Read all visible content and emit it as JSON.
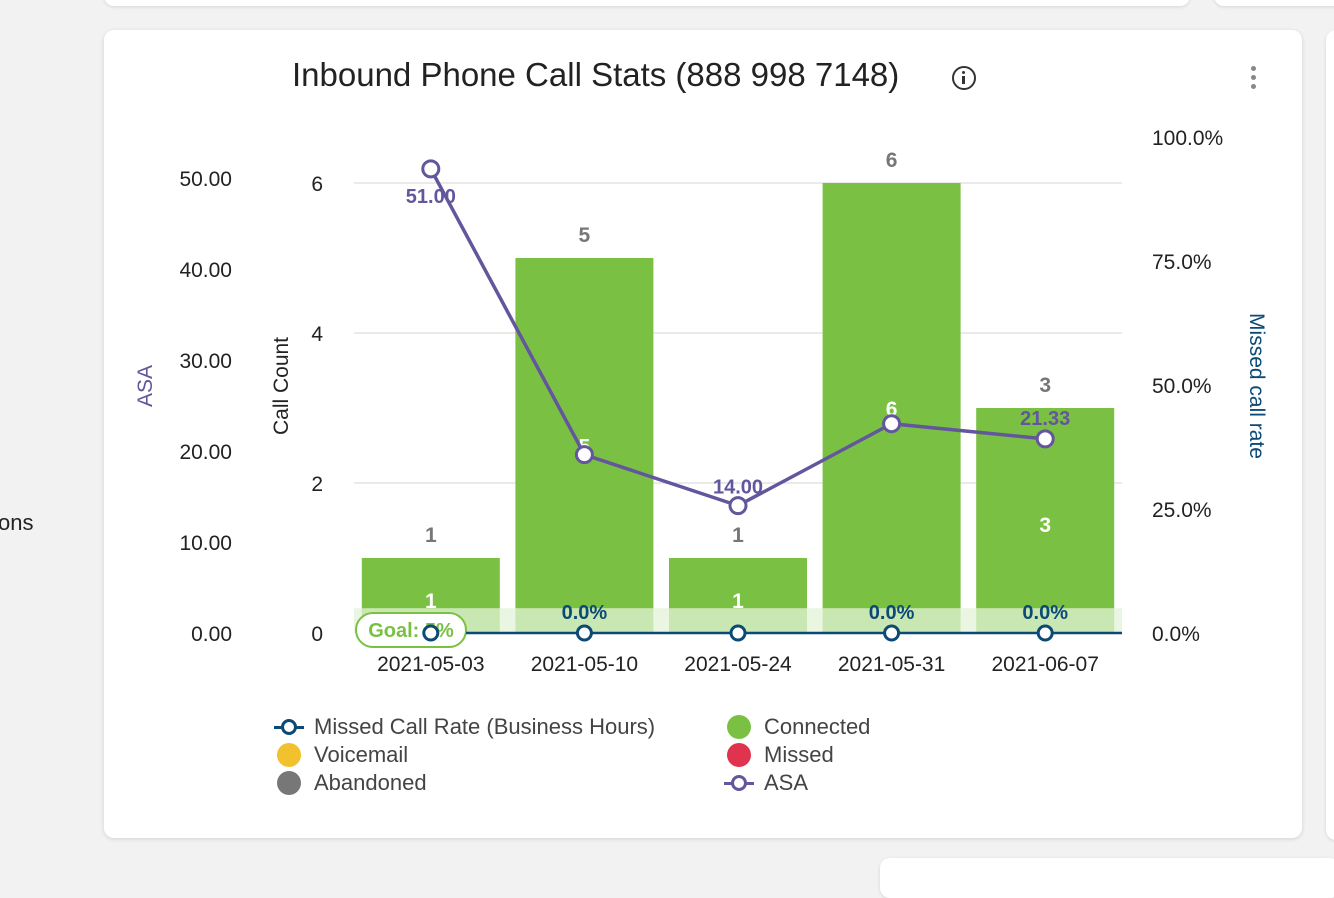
{
  "sidebar": {
    "partial_text": "ons"
  },
  "card": {
    "title": "Inbound Phone Call Stats (888 998 7148)",
    "info_icon": "info-circle-icon",
    "menu_icon": "more-vert-icon"
  },
  "colors": {
    "connected": "#7ac143",
    "voicemail": "#f2c12e",
    "missed": "#e0344e",
    "abandoned": "#777777",
    "missed_rate": "#0b4a75",
    "asa": "#63569c",
    "goal": "#7ac143",
    "goal_band": "#e4f3d8"
  },
  "chart_data": {
    "type": "bar",
    "title": "Inbound Phone Call Stats (888 998 7148)",
    "categories": [
      "2021-05-03",
      "2021-05-10",
      "2021-05-24",
      "2021-05-31",
      "2021-06-07"
    ],
    "axes": {
      "asa": {
        "label": "ASA",
        "min": 0,
        "max": 50,
        "ticks": [
          "0.00",
          "10.00",
          "20.00",
          "30.00",
          "40.00",
          "50.00"
        ],
        "tick_values": [
          0,
          10,
          20,
          30,
          40,
          50
        ]
      },
      "count": {
        "label": "Call Count",
        "min": 0,
        "max": 6,
        "ticks": [
          "0",
          "2",
          "4",
          "6"
        ],
        "tick_values": [
          0,
          2,
          4,
          6
        ]
      },
      "rate": {
        "label": "Missed call rate",
        "min": 0,
        "max": 100,
        "ticks": [
          "0.0%",
          "25.0%",
          "50.0%",
          "75.0%",
          "100.0%"
        ],
        "tick_values": [
          0,
          25,
          50,
          75,
          100
        ]
      }
    },
    "series": [
      {
        "name": "Connected",
        "type": "bar",
        "axis": "count",
        "values": [
          1,
          5,
          1,
          6,
          3
        ],
        "total_labels": [
          "1",
          "5",
          "1",
          "6",
          "3"
        ],
        "inner_labels": [
          "1",
          "5",
          "1",
          "6",
          "3"
        ]
      },
      {
        "name": "Voicemail",
        "type": "bar",
        "axis": "count",
        "values": [
          0,
          0,
          0,
          0,
          0
        ]
      },
      {
        "name": "Missed",
        "type": "bar",
        "axis": "count",
        "values": [
          0,
          0,
          0,
          0,
          0
        ]
      },
      {
        "name": "Abandoned",
        "type": "bar",
        "axis": "count",
        "values": [
          0,
          0,
          0,
          0,
          0
        ]
      },
      {
        "name": "Missed Call Rate (Business Hours)",
        "type": "line",
        "axis": "rate",
        "values": [
          0,
          0,
          0,
          0,
          0
        ],
        "labels": [
          "",
          "0.0%",
          "",
          "0.0%",
          "0.0%"
        ]
      },
      {
        "name": "ASA",
        "type": "line",
        "axis": "asa",
        "values": [
          51.0,
          19.6,
          14.0,
          23.0,
          21.33
        ],
        "labels": [
          "51.00",
          "",
          "14.00",
          "",
          "21.33"
        ]
      }
    ],
    "goal": {
      "label": "Goal: 5%",
      "value": 5,
      "axis": "rate"
    },
    "grid": true,
    "legend": [
      {
        "name": "Missed Call Rate (Business Hours)",
        "icon": "line-ring",
        "color": "#0b4a75"
      },
      {
        "name": "Connected",
        "icon": "dot",
        "color": "#7ac143"
      },
      {
        "name": "Voicemail",
        "icon": "dot",
        "color": "#f2c12e"
      },
      {
        "name": "Missed",
        "icon": "dot",
        "color": "#e0344e"
      },
      {
        "name": "Abandoned",
        "icon": "dot",
        "color": "#777777"
      },
      {
        "name": "ASA",
        "icon": "line-ring",
        "color": "#63569c"
      }
    ]
  }
}
